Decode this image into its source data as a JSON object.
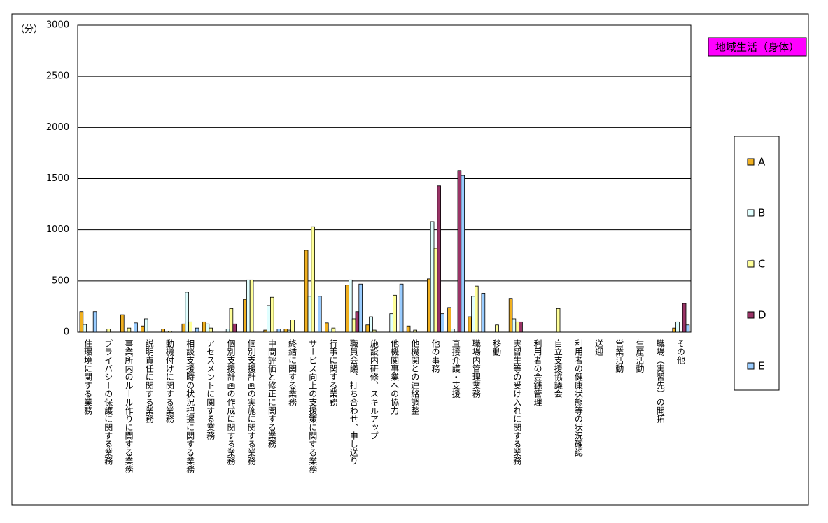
{
  "chart_data": {
    "type": "bar",
    "title": "地域生活（身体）",
    "y_label": "（分）",
    "categories": [
      "住環境に関する業務",
      "プライバシーの保護に関する業務",
      "事業所内のルール作りに関する業務",
      "説明責任に関する業務",
      "動機付けに関する業務",
      "相談支援時の状況把握に関する業務",
      "アセスメントに関する業務",
      "個別支援計画の作成に関する業務",
      "個別支援計画の実施に関する業務",
      "中間評価と修正に関する業務",
      "終結に関する業務",
      "サービス向上の支援策に関する業務",
      "行事に関する業務",
      "職員会議、打ち合わせ、申し送り",
      "施設内研修、スキルアップ",
      "他機関事業への協力",
      "他機関との連絡調整",
      "他の事務",
      "直接介護・支援",
      "職場内管理業務",
      "移動",
      "実習生等の受け入れに関する業務",
      "利用者の金銭管理",
      "自立支援協議会",
      "利用者の健康状態等の状況確認",
      "送迎",
      "営業活動",
      "生産活動",
      "職場（実習先）の開拓",
      "その他"
    ],
    "series": [
      {
        "name": "A",
        "color": "#f0b020",
        "values": [
          200,
          0,
          170,
          60,
          30,
          80,
          100,
          0,
          320,
          20,
          30,
          800,
          90,
          460,
          70,
          0,
          60,
          520,
          240,
          150,
          0,
          330,
          0,
          0,
          0,
          0,
          0,
          0,
          0,
          40
        ]
      },
      {
        "name": "B",
        "color": "#e0ffff",
        "values": [
          75,
          0,
          0,
          130,
          0,
          390,
          80,
          30,
          510,
          260,
          20,
          350,
          30,
          510,
          150,
          180,
          0,
          1080,
          30,
          350,
          0,
          130,
          0,
          0,
          0,
          0,
          0,
          0,
          0,
          100
        ]
      },
      {
        "name": "C",
        "color": "#ffff99",
        "values": [
          0,
          30,
          40,
          0,
          10,
          100,
          40,
          230,
          510,
          340,
          120,
          1030,
          40,
          130,
          20,
          360,
          20,
          820,
          0,
          450,
          70,
          100,
          0,
          230,
          0,
          0,
          0,
          0,
          0,
          0
        ]
      },
      {
        "name": "D",
        "color": "#993366",
        "values": [
          0,
          0,
          0,
          0,
          0,
          0,
          0,
          80,
          0,
          0,
          0,
          0,
          0,
          200,
          0,
          0,
          0,
          1430,
          1580,
          0,
          0,
          100,
          0,
          0,
          0,
          0,
          0,
          0,
          0,
          280
        ]
      },
      {
        "name": "E",
        "color": "#99ccff",
        "values": [
          200,
          0,
          90,
          0,
          0,
          40,
          0,
          0,
          0,
          30,
          0,
          350,
          0,
          470,
          0,
          470,
          0,
          180,
          1530,
          380,
          0,
          0,
          0,
          0,
          0,
          0,
          0,
          0,
          0,
          70
        ]
      }
    ],
    "ylim": [
      0,
      3000
    ],
    "yticks": [
      0,
      500,
      1000,
      1500,
      2000,
      2500,
      3000
    ],
    "grid": true
  }
}
